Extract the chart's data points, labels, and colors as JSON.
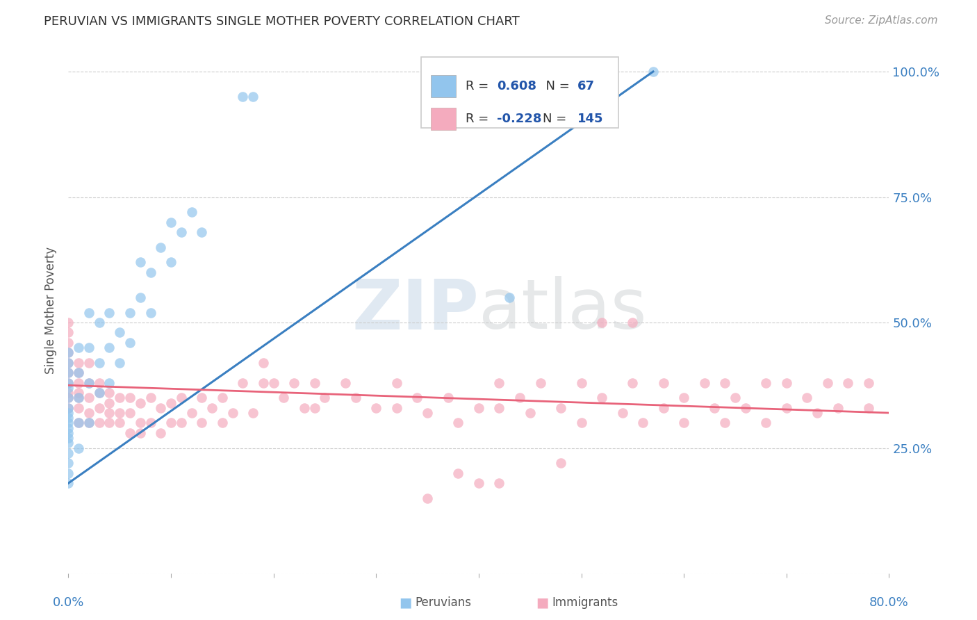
{
  "title": "PERUVIAN VS IMMIGRANTS SINGLE MOTHER POVERTY CORRELATION CHART",
  "source": "Source: ZipAtlas.com",
  "ylabel": "Single Mother Poverty",
  "legend_blue_r": "0.608",
  "legend_blue_n": "67",
  "legend_pink_r": "-0.228",
  "legend_pink_n": "145",
  "legend_blue_label": "Peruvians",
  "legend_pink_label": "Immigrants",
  "blue_color": "#92C5ED",
  "pink_color": "#F4ABBE",
  "blue_line_color": "#3A7FC1",
  "pink_line_color": "#E8637A",
  "legend_text_color": "#2255AA",
  "background_color": "#ffffff",
  "xlim": [
    0.0,
    0.8
  ],
  "ylim": [
    0.0,
    1.05
  ],
  "blue_line_x0": 0.0,
  "blue_line_y0": 0.18,
  "blue_line_x1": 0.57,
  "blue_line_y1": 1.0,
  "pink_line_x0": 0.0,
  "pink_line_y0": 0.375,
  "pink_line_x1": 0.8,
  "pink_line_y1": 0.32,
  "peruvians_x": [
    0.0,
    0.0,
    0.0,
    0.0,
    0.0,
    0.0,
    0.0,
    0.0,
    0.0,
    0.0,
    0.0,
    0.0,
    0.0,
    0.0,
    0.0,
    0.0,
    0.0,
    0.0,
    0.01,
    0.01,
    0.01,
    0.01,
    0.01,
    0.02,
    0.02,
    0.02,
    0.02,
    0.03,
    0.03,
    0.03,
    0.04,
    0.04,
    0.04,
    0.05,
    0.05,
    0.06,
    0.06,
    0.07,
    0.07,
    0.08,
    0.08,
    0.09,
    0.1,
    0.1,
    0.11,
    0.12,
    0.13,
    0.17,
    0.18,
    0.43,
    0.57
  ],
  "peruvians_y": [
    0.28,
    0.3,
    0.32,
    0.33,
    0.35,
    0.37,
    0.38,
    0.4,
    0.42,
    0.44,
    0.2,
    0.22,
    0.24,
    0.26,
    0.27,
    0.29,
    0.31,
    0.18,
    0.3,
    0.35,
    0.4,
    0.45,
    0.25,
    0.38,
    0.45,
    0.52,
    0.3,
    0.42,
    0.5,
    0.36,
    0.45,
    0.52,
    0.38,
    0.48,
    0.42,
    0.52,
    0.46,
    0.55,
    0.62,
    0.6,
    0.52,
    0.65,
    0.62,
    0.7,
    0.68,
    0.72,
    0.68,
    0.95,
    0.95,
    0.55,
    1.0
  ],
  "immigrants_x": [
    0.0,
    0.0,
    0.0,
    0.0,
    0.0,
    0.0,
    0.0,
    0.0,
    0.0,
    0.0,
    0.01,
    0.01,
    0.01,
    0.01,
    0.01,
    0.01,
    0.01,
    0.02,
    0.02,
    0.02,
    0.02,
    0.02,
    0.03,
    0.03,
    0.03,
    0.03,
    0.04,
    0.04,
    0.04,
    0.04,
    0.05,
    0.05,
    0.05,
    0.06,
    0.06,
    0.06,
    0.07,
    0.07,
    0.07,
    0.08,
    0.08,
    0.09,
    0.09,
    0.1,
    0.1,
    0.11,
    0.11,
    0.12,
    0.13,
    0.13,
    0.14,
    0.15,
    0.15,
    0.16,
    0.17,
    0.18,
    0.19,
    0.19,
    0.2,
    0.21,
    0.22,
    0.23,
    0.24,
    0.24,
    0.25,
    0.27,
    0.28,
    0.3,
    0.32,
    0.32,
    0.34,
    0.35,
    0.37,
    0.38,
    0.4,
    0.42,
    0.42,
    0.44,
    0.45,
    0.46,
    0.48,
    0.5,
    0.5,
    0.52,
    0.54,
    0.55,
    0.56,
    0.58,
    0.58,
    0.6,
    0.6,
    0.62,
    0.63,
    0.64,
    0.64,
    0.65,
    0.66,
    0.68,
    0.68,
    0.7,
    0.7,
    0.72,
    0.73,
    0.74,
    0.75,
    0.76,
    0.78,
    0.78,
    0.38,
    0.42,
    0.48,
    0.52,
    0.55,
    0.35,
    0.4
  ],
  "immigrants_y": [
    0.44,
    0.46,
    0.48,
    0.38,
    0.36,
    0.4,
    0.42,
    0.35,
    0.33,
    0.5,
    0.38,
    0.4,
    0.35,
    0.33,
    0.42,
    0.36,
    0.3,
    0.35,
    0.38,
    0.32,
    0.3,
    0.42,
    0.36,
    0.33,
    0.38,
    0.3,
    0.34,
    0.36,
    0.32,
    0.3,
    0.35,
    0.32,
    0.3,
    0.35,
    0.32,
    0.28,
    0.34,
    0.3,
    0.28,
    0.35,
    0.3,
    0.33,
    0.28,
    0.34,
    0.3,
    0.35,
    0.3,
    0.32,
    0.35,
    0.3,
    0.33,
    0.35,
    0.3,
    0.32,
    0.38,
    0.32,
    0.42,
    0.38,
    0.38,
    0.35,
    0.38,
    0.33,
    0.38,
    0.33,
    0.35,
    0.38,
    0.35,
    0.33,
    0.38,
    0.33,
    0.35,
    0.32,
    0.35,
    0.3,
    0.33,
    0.38,
    0.33,
    0.35,
    0.32,
    0.38,
    0.33,
    0.38,
    0.3,
    0.35,
    0.32,
    0.38,
    0.3,
    0.38,
    0.33,
    0.35,
    0.3,
    0.38,
    0.33,
    0.38,
    0.3,
    0.35,
    0.33,
    0.38,
    0.3,
    0.38,
    0.33,
    0.35,
    0.32,
    0.38,
    0.33,
    0.38,
    0.38,
    0.33,
    0.2,
    0.18,
    0.22,
    0.5,
    0.5,
    0.15,
    0.18
  ]
}
